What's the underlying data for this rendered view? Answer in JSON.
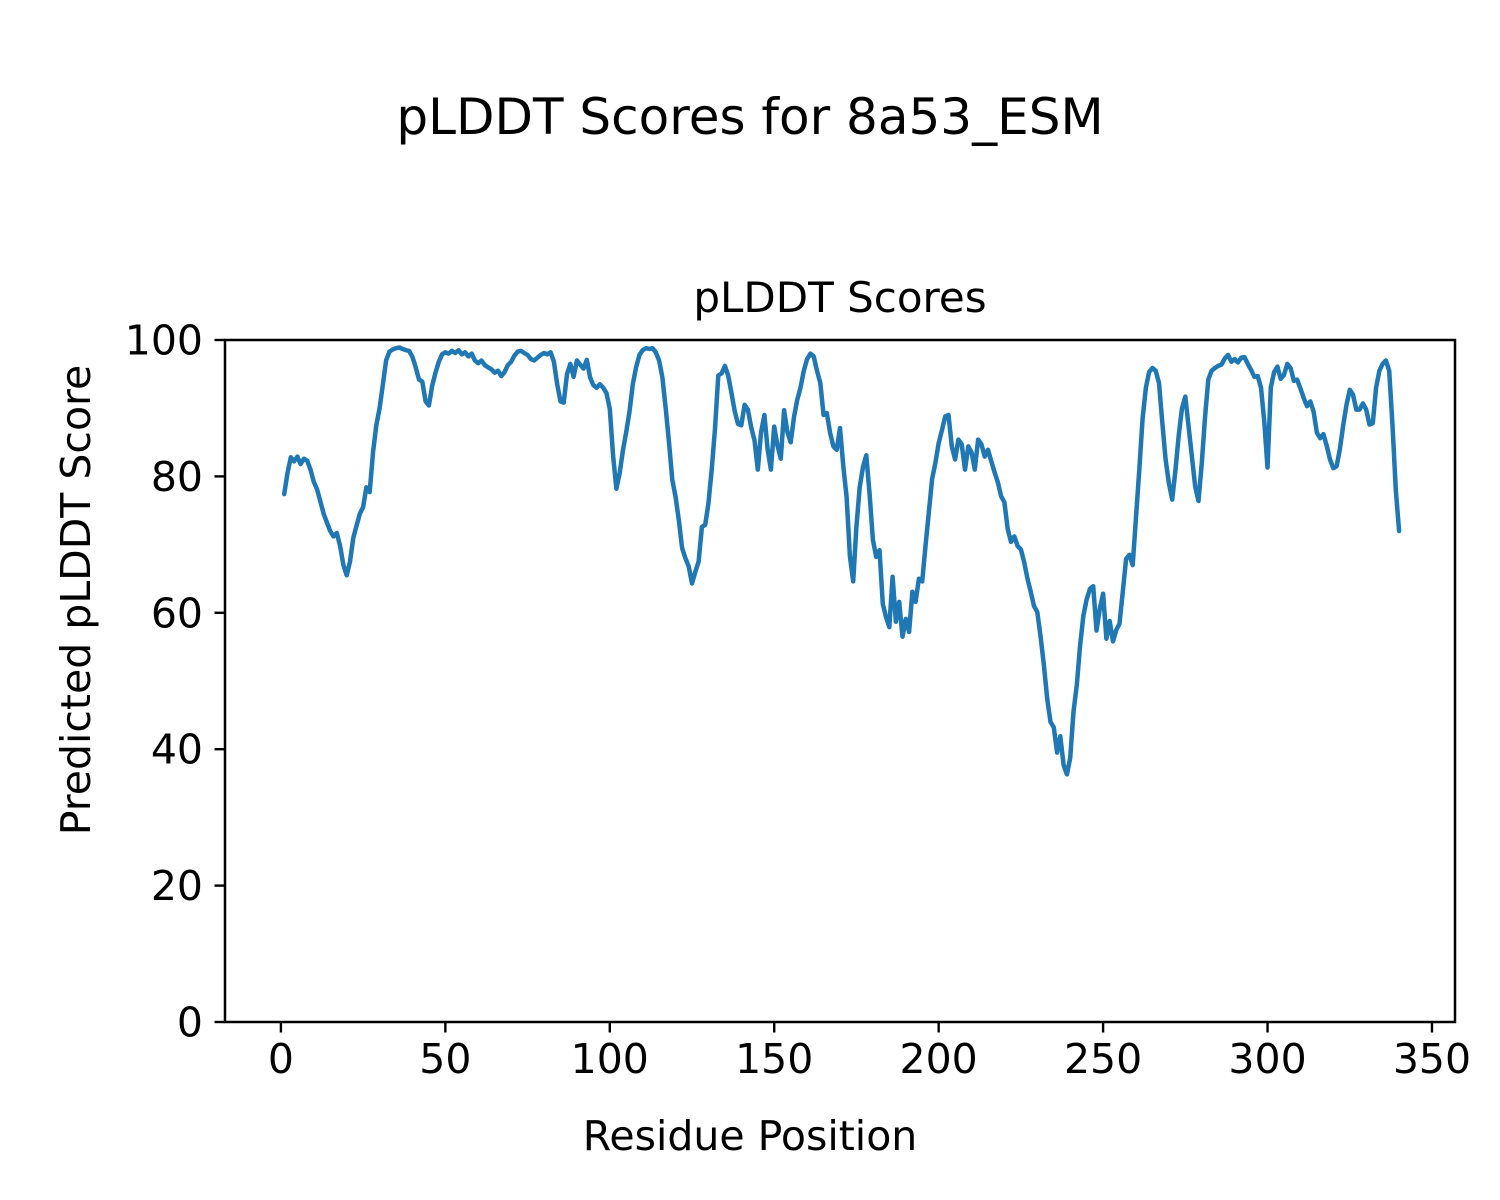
{
  "figure": {
    "suptitle": "pLDDT Scores for 8a53_ESM",
    "background_color": "#ffffff",
    "text_color": "#000000"
  },
  "chart_data": {
    "type": "line",
    "title": "pLDDT Scores",
    "xlabel": "Residue Position",
    "ylabel": "Predicted pLDDT Score",
    "xlim": [
      -17,
      357
    ],
    "ylim": [
      0,
      100
    ],
    "x_ticks": [
      0,
      50,
      100,
      150,
      200,
      250,
      300,
      350
    ],
    "y_ticks": [
      0,
      20,
      40,
      60,
      80,
      100
    ],
    "grid": false,
    "legend": null,
    "series": [
      {
        "name": "pLDDT",
        "color": "#1f77b4",
        "x_start": 1,
        "x_step": 1,
        "values": [
          77.4,
          80.5,
          82.8,
          82.2,
          82.9,
          81.8,
          82.6,
          82.3,
          81.0,
          79.2,
          78.1,
          76.3,
          74.5,
          73.2,
          72.0,
          71.2,
          71.7,
          69.8,
          67.0,
          65.5,
          67.5,
          71.0,
          72.8,
          74.5,
          75.5,
          78.4,
          77.7,
          83.5,
          87.5,
          90.0,
          93.5,
          97.0,
          98.3,
          98.6,
          98.8,
          98.9,
          98.7,
          98.5,
          98.4,
          97.5,
          96.0,
          94.2,
          93.9,
          91.0,
          90.4,
          93.3,
          95.2,
          96.8,
          97.9,
          98.2,
          98.0,
          98.4,
          98.1,
          98.5,
          97.9,
          98.2,
          97.6,
          98.0,
          97.0,
          96.6,
          97.0,
          96.3,
          96.0,
          95.7,
          95.2,
          95.5,
          94.7,
          95.3,
          96.3,
          96.8,
          97.7,
          98.3,
          98.4,
          98.1,
          97.8,
          97.2,
          97.0,
          97.4,
          97.8,
          98.1,
          97.9,
          98.2,
          96.8,
          93.5,
          91.0,
          90.8,
          95.0,
          96.5,
          94.6,
          97.0,
          96.4,
          95.8,
          97.1,
          94.5,
          93.4,
          93.0,
          93.5,
          93.0,
          92.2,
          89.9,
          83.0,
          78.2,
          80.5,
          83.8,
          86.5,
          89.5,
          93.5,
          96.0,
          97.8,
          98.5,
          98.8,
          98.7,
          98.8,
          98.2,
          97.0,
          94.5,
          90.0,
          85.0,
          79.5,
          77.0,
          73.5,
          69.5,
          68.0,
          66.8,
          64.3,
          66.0,
          67.5,
          72.6,
          72.9,
          76.0,
          81.0,
          87.0,
          94.8,
          95.1,
          96.2,
          94.8,
          92.2,
          89.5,
          87.7,
          87.5,
          90.5,
          89.8,
          87.2,
          85.3,
          81.0,
          86.5,
          89.0,
          84.0,
          81.0,
          87.3,
          84.5,
          82.6,
          89.7,
          86.5,
          85.0,
          88.7,
          91.2,
          93.0,
          95.5,
          97.2,
          98.0,
          97.6,
          95.5,
          93.7,
          89.0,
          89.3,
          86.4,
          84.4,
          83.9,
          87.1,
          81.5,
          77.0,
          68.3,
          64.6,
          72.6,
          78.4,
          81.4,
          83.1,
          77.4,
          70.7,
          68.2,
          69.2,
          61.3,
          59.4,
          57.9,
          65.3,
          58.7,
          61.6,
          56.5,
          59.1,
          57.2,
          63.1,
          61.6,
          65.0,
          64.6,
          69.8,
          74.7,
          79.6,
          82.0,
          84.9,
          86.8,
          88.8,
          89.0,
          84.4,
          82.5,
          85.4,
          84.7,
          81.0,
          84.4,
          83.5,
          81.0,
          85.4,
          84.7,
          82.9,
          83.9,
          82.2,
          80.6,
          79.1,
          77.1,
          76.2,
          72.3,
          70.4,
          71.2,
          69.8,
          69.3,
          67.4,
          65.0,
          63.1,
          61.0,
          60.1,
          56.5,
          52.3,
          47.4,
          44.0,
          43.2,
          39.5,
          41.9,
          37.7,
          36.3,
          38.7,
          45.5,
          49.4,
          55.2,
          59.6,
          62.0,
          63.5,
          63.9,
          57.4,
          60.6,
          62.8,
          56.2,
          58.8,
          55.8,
          57.5,
          58.4,
          63.1,
          67.9,
          68.5,
          67.0,
          74.0,
          81.0,
          88.5,
          93.0,
          95.3,
          95.9,
          95.5,
          93.7,
          87.9,
          82.5,
          79.0,
          76.6,
          81.0,
          86.0,
          90.0,
          91.7,
          87.3,
          82.9,
          78.5,
          76.4,
          82.0,
          88.8,
          94.2,
          95.5,
          95.9,
          96.2,
          96.4,
          97.3,
          97.8,
          96.8,
          97.2,
          96.7,
          97.4,
          97.5,
          96.5,
          95.6,
          94.6,
          94.7,
          93.0,
          88.0,
          81.3,
          93.0,
          95.3,
          96.1,
          94.3,
          94.9,
          96.5,
          95.9,
          94.0,
          94.2,
          92.9,
          91.5,
          90.3,
          91.0,
          89.5,
          86.4,
          85.6,
          86.2,
          84.5,
          82.5,
          81.2,
          81.5,
          84.0,
          87.5,
          90.5,
          92.7,
          92.0,
          89.8,
          89.8,
          90.7,
          89.8,
          87.6,
          87.8,
          93.0,
          95.5,
          96.5,
          97.0,
          95.5,
          87.5,
          78.0,
          72.0
        ]
      }
    ]
  }
}
